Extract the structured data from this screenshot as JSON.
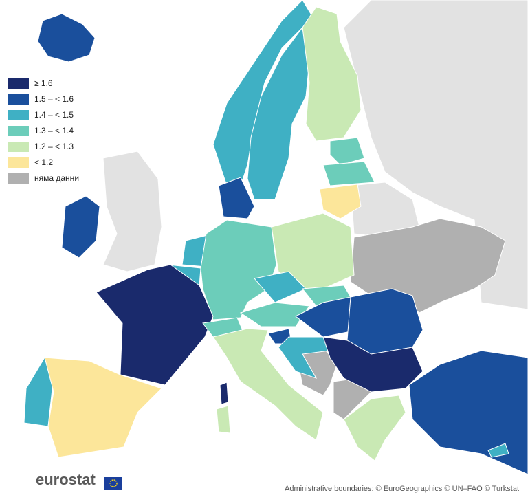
{
  "legend": {
    "items": [
      {
        "label": "≥ 1.6",
        "color": "#1a2a6c"
      },
      {
        "label": "1.5 – < 1.6",
        "color": "#1a4f9c"
      },
      {
        "label": "1.4 – < 1.5",
        "color": "#3fb0c4"
      },
      {
        "label": "1.3 – < 1.4",
        "color": "#6ccdba"
      },
      {
        "label": "1.2 – < 1.3",
        "color": "#c9e9b4"
      },
      {
        "label": "< 1.2",
        "color": "#fce69a"
      },
      {
        "label": "няма данни",
        "color": "#b0b0b0"
      }
    ]
  },
  "logo": {
    "text": "eurostat"
  },
  "footer": {
    "attribution": "Administrative boundaries: © EuroGeographics © UN–FAO © Turkstat"
  }
}
